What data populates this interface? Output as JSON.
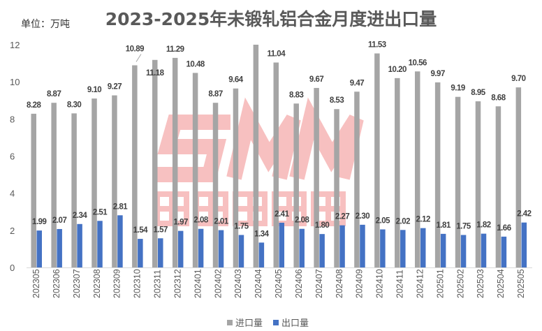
{
  "chart_data": {
    "type": "bar",
    "title": "2023-2025年未锻轧铝合金月度进出口量",
    "unit_label": "单位：万吨",
    "categories": [
      "202305",
      "202306",
      "202307",
      "202308",
      "202309",
      "202310",
      "202311",
      "202312",
      "202401",
      "202402",
      "202403",
      "202404",
      "202405",
      "202406",
      "202407",
      "202408",
      "202409",
      "202410",
      "202411",
      "202412",
      "202501",
      "202502",
      "202503",
      "202504",
      "202505"
    ],
    "series": [
      {
        "name": "进口量",
        "color": "#a5a5a5",
        "values": [
          8.28,
          8.87,
          8.3,
          9.1,
          9.27,
          10.89,
          11.18,
          11.29,
          10.48,
          8.87,
          9.64,
          12.0,
          11.04,
          8.83,
          9.67,
          8.53,
          9.47,
          11.53,
          10.2,
          10.56,
          9.97,
          9.19,
          8.95,
          8.68,
          9.7
        ],
        "labels": [
          "8.28",
          "8.87",
          "8.30",
          "9.10",
          "9.27",
          "10.89",
          "11.18",
          "11.29",
          "10.48",
          "8.87",
          "9.64",
          "",
          "11.04",
          "8.83",
          "9.67",
          "8.53",
          "9.47",
          "11.53",
          "10.20",
          "10.56",
          "9.97",
          "9.19",
          "8.95",
          "8.68",
          "9.70"
        ]
      },
      {
        "name": "出口量",
        "color": "#4472c4",
        "values": [
          1.99,
          2.07,
          2.34,
          2.51,
          2.81,
          1.54,
          1.57,
          1.97,
          2.08,
          2.01,
          1.75,
          1.34,
          2.41,
          2.08,
          1.8,
          2.27,
          2.3,
          2.05,
          2.02,
          2.12,
          1.81,
          1.75,
          1.82,
          1.66,
          2.42
        ],
        "labels": [
          "1.99",
          "2.07",
          "2.34",
          "2.51",
          "2.81",
          "1.54",
          "1.57",
          "1.97",
          "2.08",
          "2.01",
          "1.75",
          "1.34",
          "2.41",
          "2.08",
          "1.80",
          "2.27",
          "2.30",
          "2.05",
          "2.02",
          "2.12",
          "1.81",
          "1.75",
          "1.82",
          "1.66",
          "2.42"
        ]
      }
    ],
    "yticks": [
      "0",
      "2",
      "4",
      "6",
      "8",
      "10",
      "12"
    ],
    "ylim": [
      0,
      12
    ],
    "grid": false,
    "legend": "bottom"
  },
  "watermark": {
    "logo": "SMM",
    "text": "上海有色网",
    "color": "#f4a6a6"
  }
}
